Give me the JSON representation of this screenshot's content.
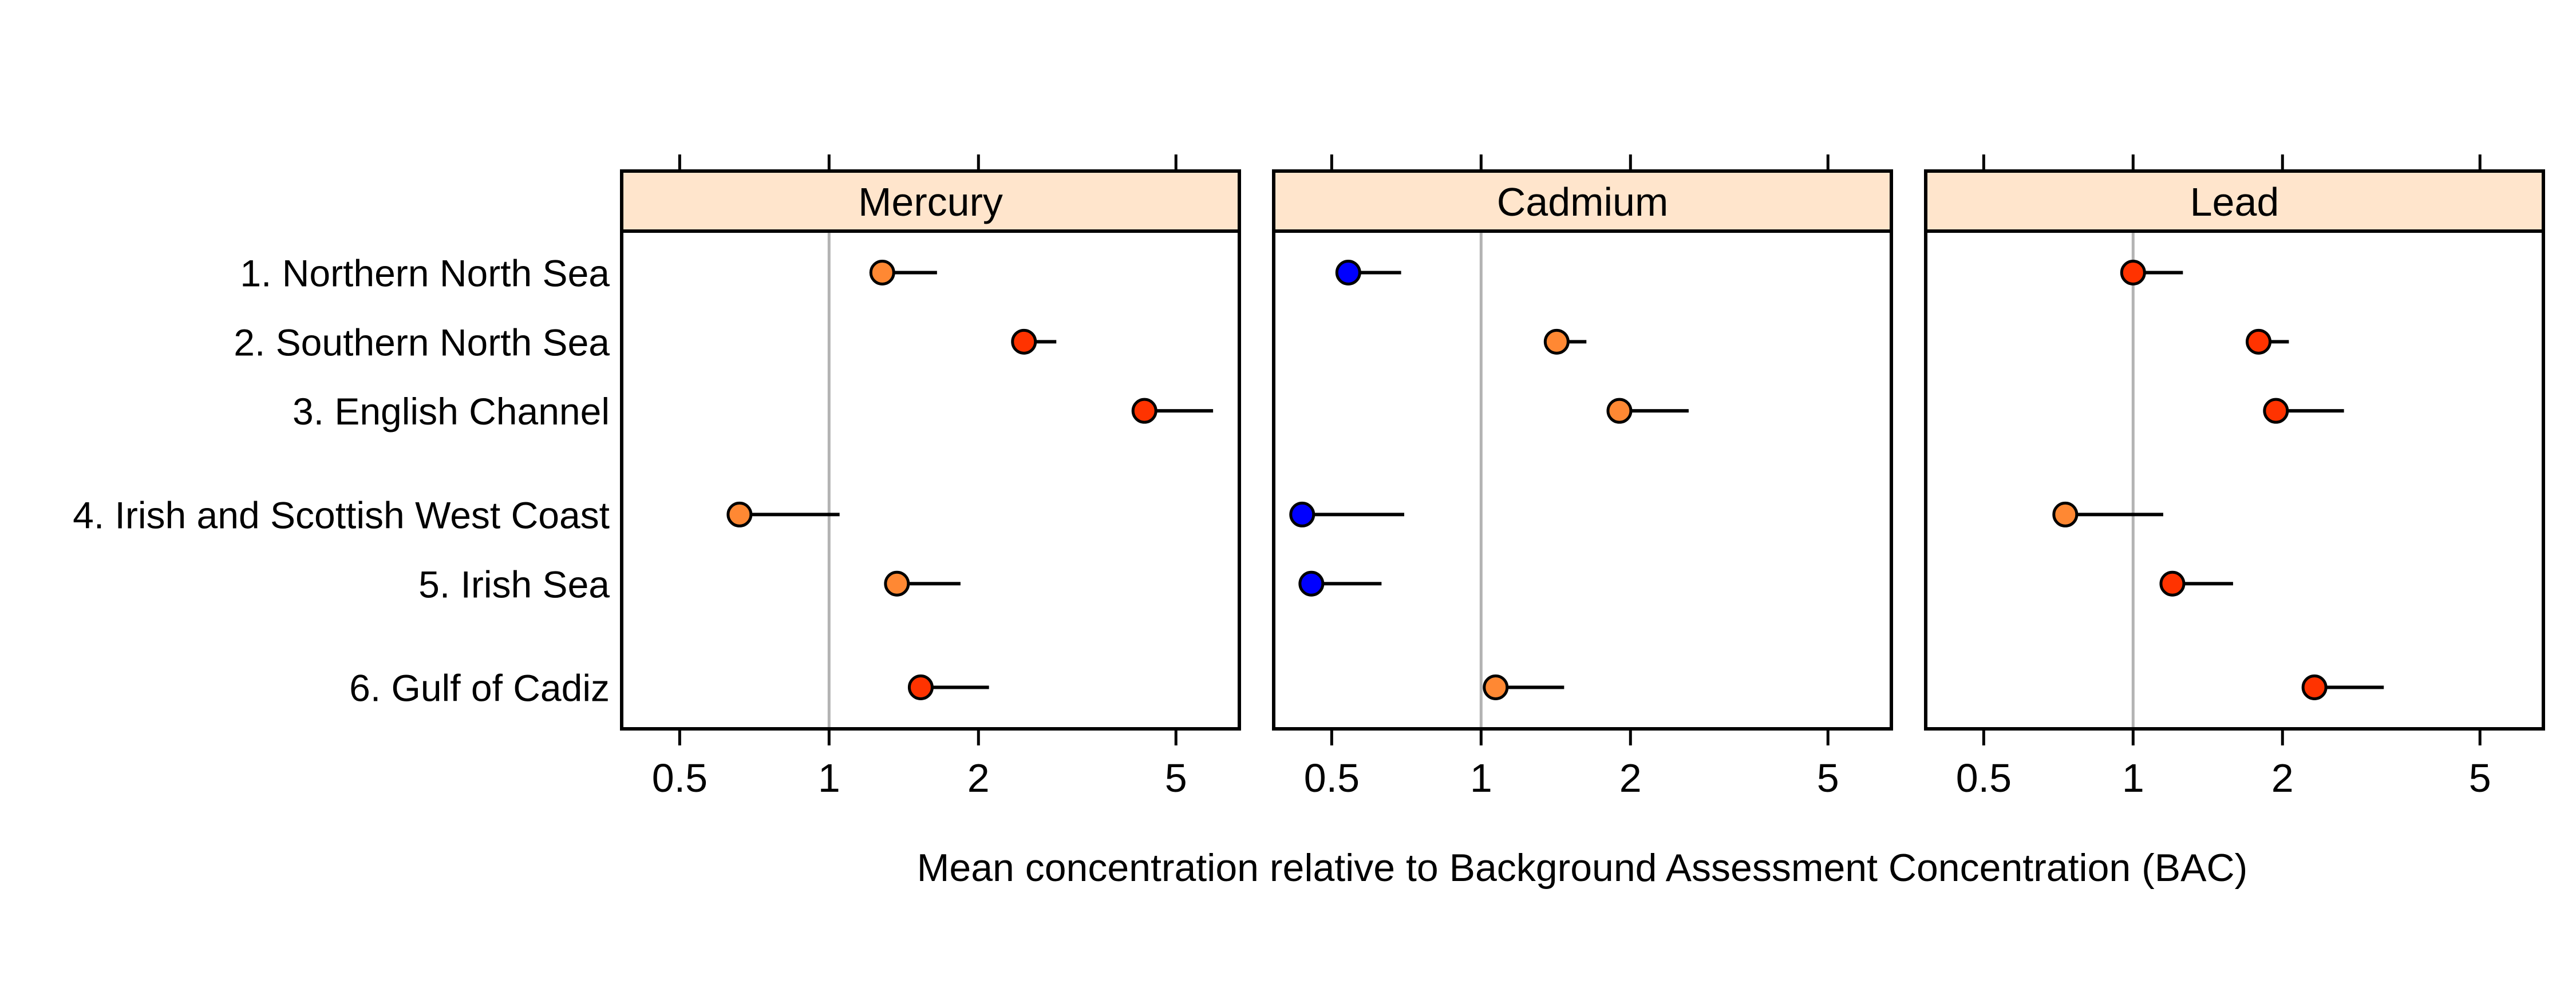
{
  "chart_data": {
    "type": "dot-interval",
    "title": "",
    "xlabel": "Mean concentration relative to Background Assessment Concentration (BAC)",
    "ylabel": "",
    "x_scale": "log",
    "xlim": [
      0.382,
      6.71
    ],
    "x_ticks": [
      0.5,
      1,
      2,
      5
    ],
    "x_tick_labels": [
      "0.5",
      "1",
      "2",
      "5"
    ],
    "reference_line": 1,
    "ylim": [
      0.4,
      7.6
    ],
    "regions": [
      {
        "label": "1. Northern North Sea",
        "y": 1
      },
      {
        "label": "2. Southern North Sea",
        "y": 2
      },
      {
        "label": "3. English Channel",
        "y": 3
      },
      {
        "label": "4. Irish and Scottish West Coast",
        "y": 4.5
      },
      {
        "label": "5. Irish Sea",
        "y": 5.5
      },
      {
        "label": "6. Gulf of Cadiz",
        "y": 7
      }
    ],
    "status_colors": {
      "below_bac": "#0000ff",
      "above_bac_low": "#ff8833",
      "above_bac_high": "#ff3300"
    },
    "strip_color": "#ffe5cc",
    "reference_line_color": "#b3b3b3",
    "panels": [
      {
        "name": "Mercury",
        "points": [
          {
            "region": "1. Northern North Sea",
            "mean": 1.28,
            "upper": 1.65,
            "status": "above_bac_low"
          },
          {
            "region": "2. Southern North Sea",
            "mean": 2.47,
            "upper": 2.87,
            "status": "above_bac_high"
          },
          {
            "region": "3. English Channel",
            "mean": 4.32,
            "upper": 5.94,
            "status": "above_bac_high"
          },
          {
            "region": "4. Irish and Scottish West Coast",
            "mean": 0.66,
            "upper": 1.05,
            "status": "above_bac_low"
          },
          {
            "region": "5. Irish Sea",
            "mean": 1.37,
            "upper": 1.84,
            "status": "above_bac_low"
          },
          {
            "region": "6. Gulf of Cadiz",
            "mean": 1.53,
            "upper": 2.1,
            "status": "above_bac_high"
          }
        ]
      },
      {
        "name": "Cadmium",
        "points": [
          {
            "region": "1. Northern North Sea",
            "mean": 0.54,
            "upper": 0.69,
            "status": "below_bac"
          },
          {
            "region": "2. Southern North Sea",
            "mean": 1.42,
            "upper": 1.63,
            "status": "above_bac_low"
          },
          {
            "region": "3. English Channel",
            "mean": 1.9,
            "upper": 2.62,
            "status": "above_bac_low"
          },
          {
            "region": "4. Irish and Scottish West Coast",
            "mean": 0.436,
            "upper": 0.7,
            "status": "below_bac"
          },
          {
            "region": "5. Irish Sea",
            "mean": 0.455,
            "upper": 0.63,
            "status": "below_bac"
          },
          {
            "region": "6. Gulf of Cadiz",
            "mean": 1.07,
            "upper": 1.47,
            "status": "above_bac_low"
          }
        ]
      },
      {
        "name": "Lead",
        "points": [
          {
            "region": "1. Northern North Sea",
            "mean": 1.0,
            "upper": 1.26,
            "status": "above_bac_high"
          },
          {
            "region": "2. Southern North Sea",
            "mean": 1.79,
            "upper": 2.06,
            "status": "above_bac_high"
          },
          {
            "region": "3. English Channel",
            "mean": 1.94,
            "upper": 2.66,
            "status": "above_bac_high"
          },
          {
            "region": "4. Irish and Scottish West Coast",
            "mean": 0.73,
            "upper": 1.15,
            "status": "above_bac_low"
          },
          {
            "region": "5. Irish Sea",
            "mean": 1.2,
            "upper": 1.59,
            "status": "above_bac_high"
          },
          {
            "region": "6. Gulf of Cadiz",
            "mean": 2.32,
            "upper": 3.2,
            "status": "above_bac_high"
          }
        ]
      }
    ]
  }
}
